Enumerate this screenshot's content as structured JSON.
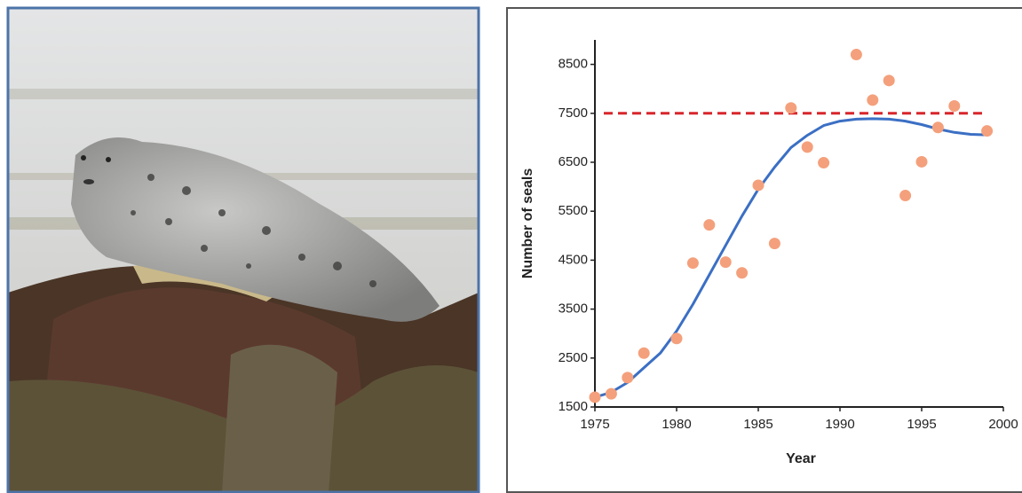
{
  "chart_data": {
    "type": "scatter",
    "x_label": "Year",
    "y_label": "Number of seals",
    "x": [
      1975,
      1976,
      1977,
      1978,
      1980,
      1981,
      1982,
      1983,
      1984,
      1985,
      1986,
      1987,
      1988,
      1989,
      1991,
      1992,
      1993,
      1994,
      1995,
      1996,
      1997,
      1999
    ],
    "values": [
      1700,
      1770,
      2100,
      2600,
      2900,
      4440,
      5220,
      4460,
      4240,
      6030,
      4840,
      7610,
      6810,
      6490,
      8700,
      7770,
      8170,
      5820,
      6510,
      7210,
      7650,
      7140
    ],
    "color": "#f4a07c",
    "fit": {
      "x": [
        1975,
        1976,
        1977,
        1978,
        1979,
        1980,
        1981,
        1982,
        1983,
        1984,
        1985,
        1986,
        1987,
        1988,
        1989,
        1990,
        1991,
        1992,
        1993,
        1994,
        1995,
        1996,
        1997,
        1998,
        1999
      ],
      "values": [
        1700,
        1800,
        2000,
        2300,
        2600,
        3050,
        3600,
        4200,
        4800,
        5400,
        5950,
        6400,
        6800,
        7050,
        7250,
        7340,
        7380,
        7390,
        7380,
        7340,
        7270,
        7180,
        7110,
        7070,
        7060
      ],
      "color": "#3b6fc4"
    },
    "reference_line": {
      "value": 7500,
      "color": "#d7262b"
    },
    "xlim": [
      1975,
      2000
    ],
    "ylim": [
      1500,
      9000
    ],
    "xticks": [
      1975,
      1980,
      1985,
      1990,
      1995,
      2000
    ],
    "yticks": [
      1500,
      2500,
      3500,
      4500,
      5500,
      6500,
      7500,
      8500
    ]
  }
}
